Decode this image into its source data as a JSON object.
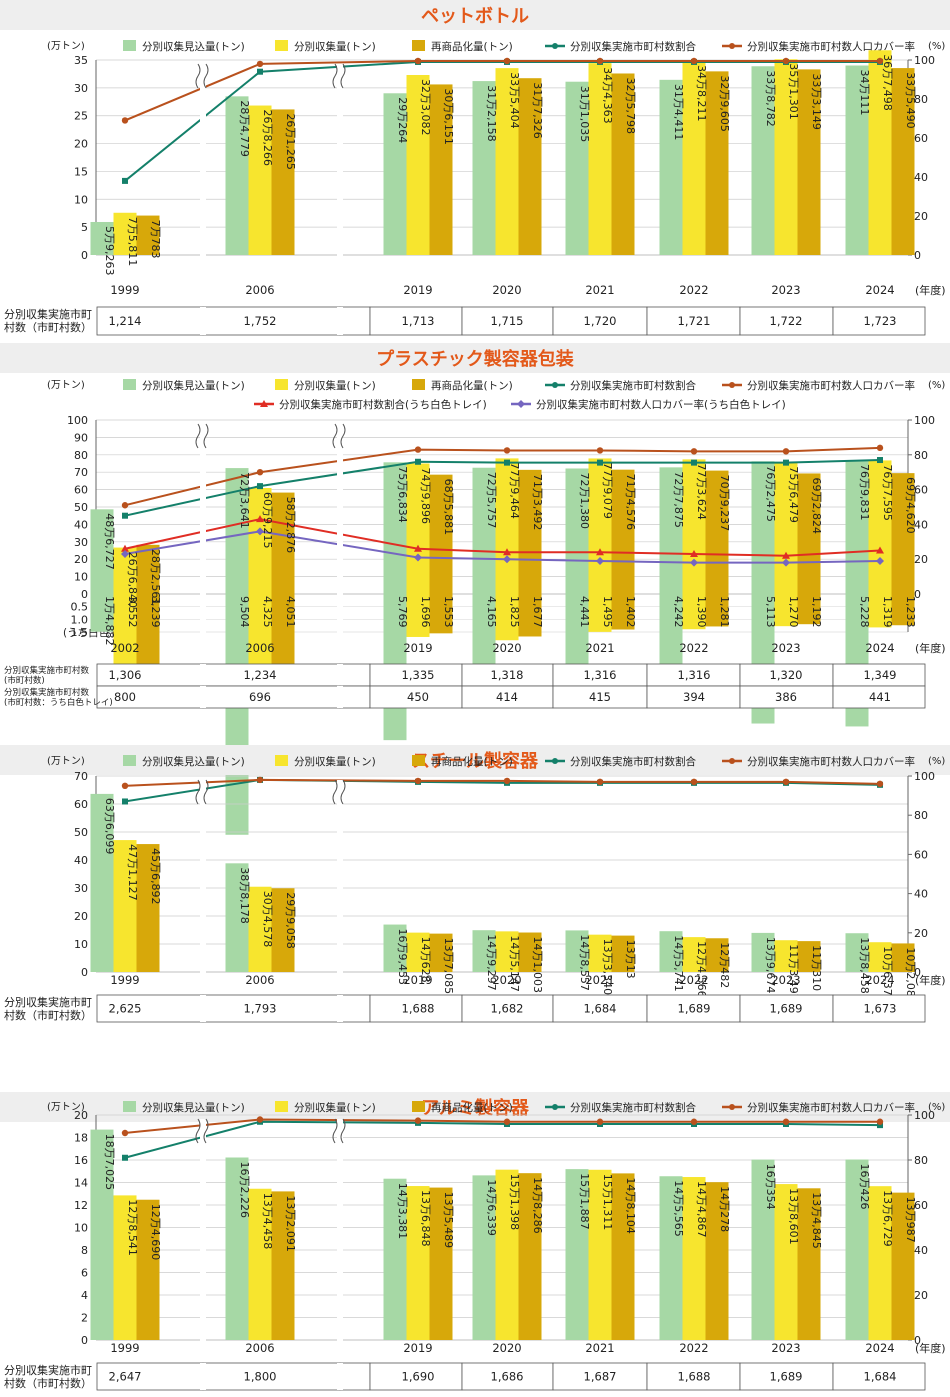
{
  "colors": {
    "est": "#a6d8a5",
    "col": "#f7e52e",
    "rec": "#d7a80a",
    "ratio": "#14806a",
    "cover": "#b9511d",
    "wt_ratio": "#e02d24",
    "wt_cover": "#7566c0",
    "banner": "#eeeeee",
    "title": "#e3591a"
  },
  "legend_labels": {
    "est": "分別収集見込量(トン)",
    "col": "分別収集量(トン)",
    "rec": "再商品化量(トン)",
    "ratio": "分別収集実施市町村数割合",
    "cover": "分別収集実施市町村数人口カバー率",
    "wt_ratio": "分別収集実施市町村数割合(うち白色トレイ)",
    "wt_cover": "分別収集実施市町村数人口カバー率(うち白色トレイ)"
  },
  "common": {
    "y_unit_left": "(万トン)",
    "y_unit_right": "(%)",
    "x_unit": "(年度)",
    "table_label_1": "分別収集実施市町",
    "table_label_2": "村数（市町村数）",
    "wt_table_label_1": "分別収集実施市町村数",
    "wt_table_label_2": "(市町村数：うち白色トレイ)",
    "wt_note": "(うち白色トレイ)"
  },
  "chart_data": [
    {
      "title": "ペットボトル",
      "type": "bar",
      "categories": [
        "1999",
        "2006",
        "2019",
        "2020",
        "2021",
        "2022",
        "2023",
        "2024"
      ],
      "ylim": [
        0,
        35
      ],
      "yticks": [
        0,
        5,
        10,
        15,
        20,
        25,
        30,
        35
      ],
      "y2lim": [
        0,
        100
      ],
      "y2ticks": [
        0,
        20,
        40,
        60,
        80,
        100
      ],
      "series": [
        {
          "key": "est",
          "values": [
            5.9263,
            28.4779,
            29.0264,
            31.2158,
            31.1035,
            31.4411,
            33.8782,
            34.0111
          ],
          "labels": [
            "5万9,263",
            "28万4,779",
            "29万264",
            "31万2,158",
            "31万1,035",
            "31万4,411",
            "33万8,782",
            "34万111"
          ]
        },
        {
          "key": "col",
          "values": [
            7.5811,
            26.8266,
            32.3082,
            33.5404,
            34.4363,
            34.8211,
            35.1301,
            36.7498
          ],
          "labels": [
            "7万5,811",
            "26万8,266",
            "32万3,082",
            "33万5,404",
            "34万4,363",
            "34万8,211",
            "35万1,301",
            "36万7,498"
          ]
        },
        {
          "key": "rec",
          "values": [
            7.0783,
            26.1265,
            30.6151,
            31.7326,
            32.5798,
            32.9605,
            33.3149,
            33.549
          ],
          "labels": [
            "7万783",
            "26万1,265",
            "30万6,151",
            "31万7,326",
            "32万5,798",
            "32万9,605",
            "33万3,149",
            "33万5,490"
          ]
        }
      ],
      "lines": [
        {
          "key": "ratio",
          "values": [
            38,
            94,
            99,
            99,
            99,
            99,
            99,
            99
          ]
        },
        {
          "key": "cover",
          "values": [
            69,
            98,
            99.5,
            99.5,
            99.5,
            99.5,
            99.5,
            99.5
          ]
        }
      ],
      "table": [
        [
          "1,214",
          "1,752",
          "1,713",
          "1,715",
          "1,720",
          "1,721",
          "1,722",
          "1,723"
        ]
      ]
    },
    {
      "title": "プラスチック製容器包装",
      "type": "bar",
      "categories": [
        "2002",
        "2006",
        "2019",
        "2020",
        "2021",
        "2022",
        "2023",
        "2024"
      ],
      "ylim": [
        0,
        100
      ],
      "yticks": [
        0,
        10,
        20,
        30,
        40,
        50,
        60,
        70,
        80,
        90,
        100
      ],
      "neg_ticks": [
        "0.5",
        "1.0",
        "1.5"
      ],
      "y2lim": [
        0,
        100
      ],
      "y2ticks": [
        0,
        20,
        40,
        60,
        80,
        100
      ],
      "series": [
        {
          "key": "est",
          "values": [
            48.6727,
            72.3641,
            75.6834,
            72.5757,
            72.138,
            72.7875,
            76.2475,
            76.9831
          ],
          "labels": [
            "48万6,727",
            "72万3,641",
            "75万6,834",
            "72万5,757",
            "72万1,380",
            "72万7,875",
            "76万2,475",
            "76万9,831"
          ]
        },
        {
          "key": "col",
          "values": [
            26.684,
            60.9215,
            74.9896,
            77.9464,
            77.9079,
            77.3624,
            75.6479,
            76.7595
          ],
          "labels": [
            "26万6,840",
            "60万9,215",
            "74万9,896",
            "77万9,464",
            "77万9,079",
            "77万3,624",
            "75万6,479",
            "76万7,595"
          ]
        },
        {
          "key": "rec",
          "values": [
            28.2561,
            58.2876,
            68.5881,
            71.3492,
            71.4576,
            70.9237,
            69.2824,
            69.462
          ],
          "labels": [
            "28万2,561",
            "58万2,876",
            "68万5,881",
            "71万3,492",
            "71万4,576",
            "70万9,237",
            "69万2,824",
            "69万4,620"
          ]
        }
      ],
      "neg_series": [
        {
          "key": "est",
          "values": [
            1.4882,
            9.504,
            5.769,
            4.165,
            4.441,
            4.242,
            5.113,
            5.228
          ],
          "labels": [
            "1万4,882",
            "9,504",
            "5,769",
            "4,165",
            "4,441",
            "4,242",
            "5,113",
            "5,228"
          ]
        },
        {
          "key": "col",
          "values": [
            3.552,
            4.325,
            1.696,
            1.825,
            1.495,
            1.39,
            1.27,
            1.319
          ],
          "labels": [
            "3,552",
            "4,325",
            "1,696",
            "1,825",
            "1,495",
            "1,390",
            "1,270",
            "1,319"
          ]
        },
        {
          "key": "rec",
          "values": [
            3.239,
            4.051,
            1.553,
            1.677,
            1.402,
            1.281,
            1.192,
            1.233
          ],
          "labels": [
            "3,239",
            "4,051",
            "1,553",
            "1,677",
            "1,402",
            "1,281",
            "1,192",
            "1,233"
          ]
        }
      ],
      "lines": [
        {
          "key": "ratio",
          "values": [
            45,
            62,
            76,
            75.5,
            75.5,
            75.5,
            75.5,
            77
          ]
        },
        {
          "key": "cover",
          "values": [
            51,
            70,
            83,
            82.5,
            82.5,
            82,
            82,
            84
          ]
        },
        {
          "key": "wt_ratio",
          "values": [
            26,
            43,
            26,
            24,
            24,
            23,
            22,
            25
          ]
        },
        {
          "key": "wt_cover",
          "values": [
            23,
            36,
            21,
            20,
            19,
            18,
            18,
            19
          ]
        }
      ],
      "table": [
        [
          "1,306",
          "1,234",
          "1,335",
          "1,318",
          "1,316",
          "1,316",
          "1,320",
          "1,349"
        ],
        [
          "800",
          "696",
          "450",
          "414",
          "415",
          "394",
          "386",
          "441"
        ]
      ]
    },
    {
      "title": "スチール製容器",
      "type": "bar",
      "categories": [
        "1999",
        "2006",
        "2019",
        "2020",
        "2021",
        "2022",
        "2023",
        "2024"
      ],
      "ylim": [
        0,
        70
      ],
      "yticks": [
        0,
        10,
        20,
        30,
        40,
        50,
        60,
        70
      ],
      "y2lim": [
        0,
        100
      ],
      "y2ticks": [
        0,
        20,
        40,
        60,
        80,
        100
      ],
      "series": [
        {
          "key": "est",
          "values": [
            63.6099,
            38.8178,
            16.9455,
            14.9297,
            14.8557,
            14.5741,
            13.9674,
            13.8458
          ],
          "labels": [
            "63万6,099",
            "38万8,178",
            "16万9,455",
            "14万9,297",
            "14万8,557",
            "14万5,741",
            "13万9,674",
            "13万8,458"
          ]
        },
        {
          "key": "col",
          "values": [
            47.1127,
            30.4578,
            14.0628,
            14.5147,
            13.334,
            12.4566,
            11.3497,
            10.637
          ],
          "labels": [
            "47万1,127",
            "30万4,578",
            "14万628",
            "14万5,147",
            "13万3,340",
            "12万4,566",
            "11万3,497",
            "10万6,370"
          ]
        },
        {
          "key": "rec",
          "values": [
            45.6892,
            29.9058,
            13.7085,
            14.1003,
            13.0013,
            12.0482,
            11.031,
            10.2089
          ],
          "labels": [
            "45万6,892",
            "29万9,058",
            "13万7,085",
            "14万1,003",
            "13万13",
            "12万482",
            "11万310",
            "10万2,089"
          ]
        }
      ],
      "lines": [
        {
          "key": "ratio",
          "values": [
            87,
            98,
            97,
            96.5,
            96.5,
            96.5,
            96.5,
            95.5
          ]
        },
        {
          "key": "cover",
          "values": [
            95,
            98,
            97.5,
            97.5,
            97,
            97,
            97,
            96
          ]
        }
      ],
      "table": [
        [
          "2,625",
          "1,793",
          "1,688",
          "1,682",
          "1,684",
          "1,689",
          "1,689",
          "1,673"
        ]
      ]
    },
    {
      "title": "アルミ製容器",
      "type": "bar",
      "categories": [
        "1999",
        "2006",
        "2019",
        "2020",
        "2021",
        "2022",
        "2023",
        "2024"
      ],
      "ylim": [
        0,
        20
      ],
      "yticks": [
        0,
        2,
        4,
        6,
        8,
        10,
        12,
        14,
        16,
        18,
        20
      ],
      "y2lim": [
        0,
        100
      ],
      "y2ticks": [
        0,
        20,
        40,
        60,
        80,
        100
      ],
      "series": [
        {
          "key": "est",
          "values": [
            18.7025,
            16.2226,
            14.3381,
            14.6339,
            15.1887,
            14.5565,
            16.0354,
            16.0426
          ],
          "labels": [
            "18万7,025",
            "16万2,226",
            "14万3,381",
            "14万6,339",
            "15万1,887",
            "14万5,565",
            "16万354",
            "16万426"
          ]
        },
        {
          "key": "col",
          "values": [
            12.8541,
            13.4458,
            13.6848,
            15.1398,
            15.1311,
            14.4867,
            13.8601,
            13.6729
          ],
          "labels": [
            "12万8,541",
            "13万4,458",
            "13万6,848",
            "15万1,398",
            "15万1,311",
            "14万4,867",
            "13万8,601",
            "13万6,729"
          ]
        },
        {
          "key": "rec",
          "values": [
            12.469,
            13.2091,
            13.5489,
            14.8286,
            14.8104,
            14.0278,
            13.4845,
            13.0987
          ],
          "labels": [
            "12万4,690",
            "13万2,091",
            "13万5,489",
            "14万8,286",
            "14万8,104",
            "14万278",
            "13万4,845",
            "13万987"
          ]
        }
      ],
      "lines": [
        {
          "key": "ratio",
          "values": [
            81,
            97,
            96.5,
            96,
            96,
            96,
            96,
            95.5
          ]
        },
        {
          "key": "cover",
          "values": [
            92,
            98,
            97.5,
            97,
            97,
            97,
            97,
            97
          ]
        }
      ],
      "table": [
        [
          "2,647",
          "1,800",
          "1,690",
          "1,686",
          "1,687",
          "1,688",
          "1,689",
          "1,684"
        ]
      ]
    }
  ]
}
